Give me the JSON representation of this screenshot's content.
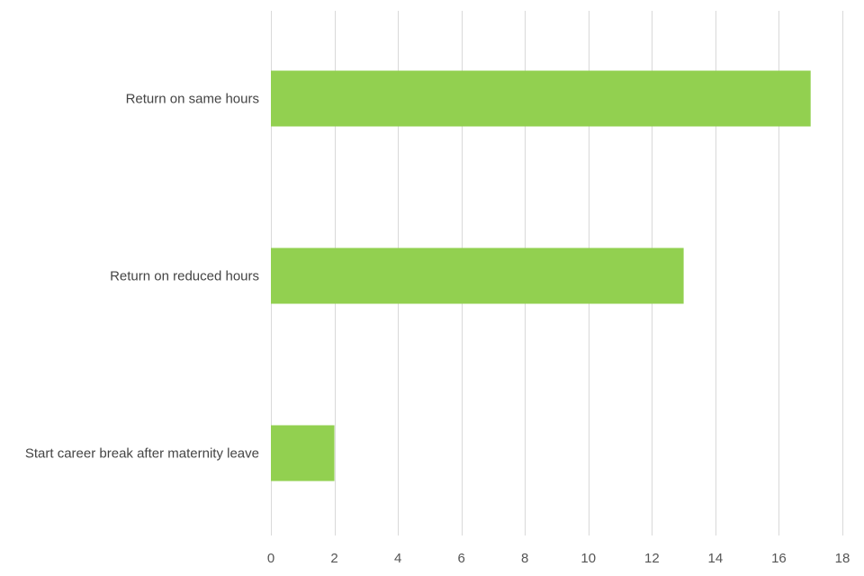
{
  "chart_data": {
    "type": "bar",
    "orientation": "horizontal",
    "title": "",
    "xlabel": "",
    "ylabel": "",
    "categories": [
      "Return on same hours",
      "Return on reduced hours",
      "Start career break after maternity leave"
    ],
    "values": [
      17,
      13,
      2
    ],
    "xlim": [
      0,
      18
    ],
    "xticks": [
      0,
      2,
      4,
      6,
      8,
      10,
      12,
      14,
      16,
      18
    ],
    "grid": "vertical",
    "legend": "none",
    "colors": {
      "bar": "#92d050",
      "grid": "#d9d9d9",
      "text": "#444444"
    }
  }
}
